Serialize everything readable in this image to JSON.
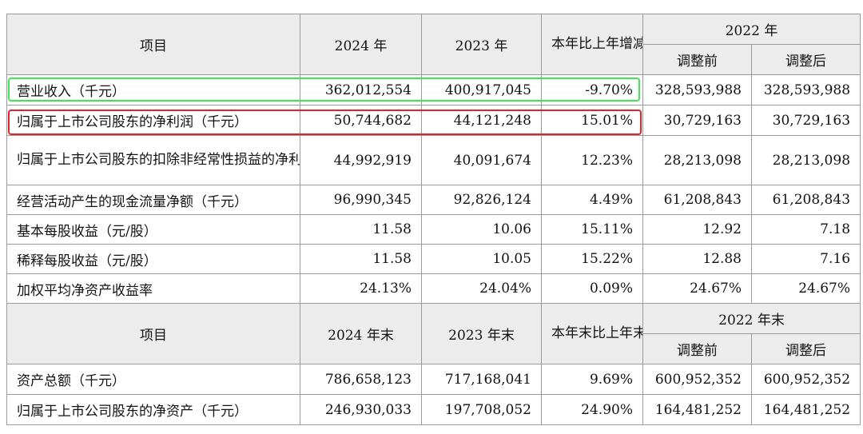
{
  "table1": {
    "header": {
      "item": "项目",
      "y2024": "2024 年",
      "y2023": "2023 年",
      "change": "本年比上年增减",
      "y2022": "2022 年",
      "before": "调整前",
      "after": "调整后"
    },
    "rows": [
      {
        "label": "营业收入（千元）",
        "y2024": "362,012,554",
        "y2023": "400,917,045",
        "change": "-9.70%",
        "before": "328,593,988",
        "after": "328,593,988"
      },
      {
        "label": "归属于上市公司股东的净利润（千元）",
        "y2024": "50,744,682",
        "y2023": "44,121,248",
        "change": "15.01%",
        "before": "30,729,163",
        "after": "30,729,163"
      },
      {
        "label": "归属于上市公司股东的扣除非经常性损益的净利润（千元）",
        "y2024": "44,992,919",
        "y2023": "40,091,674",
        "change": "12.23%",
        "before": "28,213,098",
        "after": "28,213,098"
      },
      {
        "label": "经营活动产生的现金流量净额（千元）",
        "y2024": "96,990,345",
        "y2023": "92,826,124",
        "change": "4.49%",
        "before": "61,208,843",
        "after": "61,208,843"
      },
      {
        "label": "基本每股收益（元/股）",
        "y2024": "11.58",
        "y2023": "10.06",
        "change": "15.11%",
        "before": "12.92",
        "after": "7.18"
      },
      {
        "label": "稀释每股收益（元/股）",
        "y2024": "11.58",
        "y2023": "10.05",
        "change": "15.22%",
        "before": "12.88",
        "after": "7.16"
      },
      {
        "label": "加权平均净资产收益率",
        "y2024": "24.13%",
        "y2023": "24.04%",
        "change": "0.09%",
        "before": "24.67%",
        "after": "24.67%"
      }
    ]
  },
  "table2": {
    "header": {
      "item": "项目",
      "y2024": "2024 年末",
      "y2023": "2023 年末",
      "change": "本年末比上年末增减",
      "y2022": "2022 年末",
      "before": "调整前",
      "after": "调整后"
    },
    "rows": [
      {
        "label": "资产总额（千元）",
        "y2024": "786,658,123",
        "y2023": "717,168,041",
        "change": "9.69%",
        "before": "600,952,352",
        "after": "600,952,352"
      },
      {
        "label": "归属于上市公司股东的净资产（千元）",
        "y2024": "246,930,033",
        "y2023": "197,708,052",
        "change": "24.90%",
        "before": "164,481,252",
        "after": "164,481,252"
      }
    ]
  },
  "highlights": {
    "green_color": "#3ee650",
    "red_color": "#e0242a"
  }
}
